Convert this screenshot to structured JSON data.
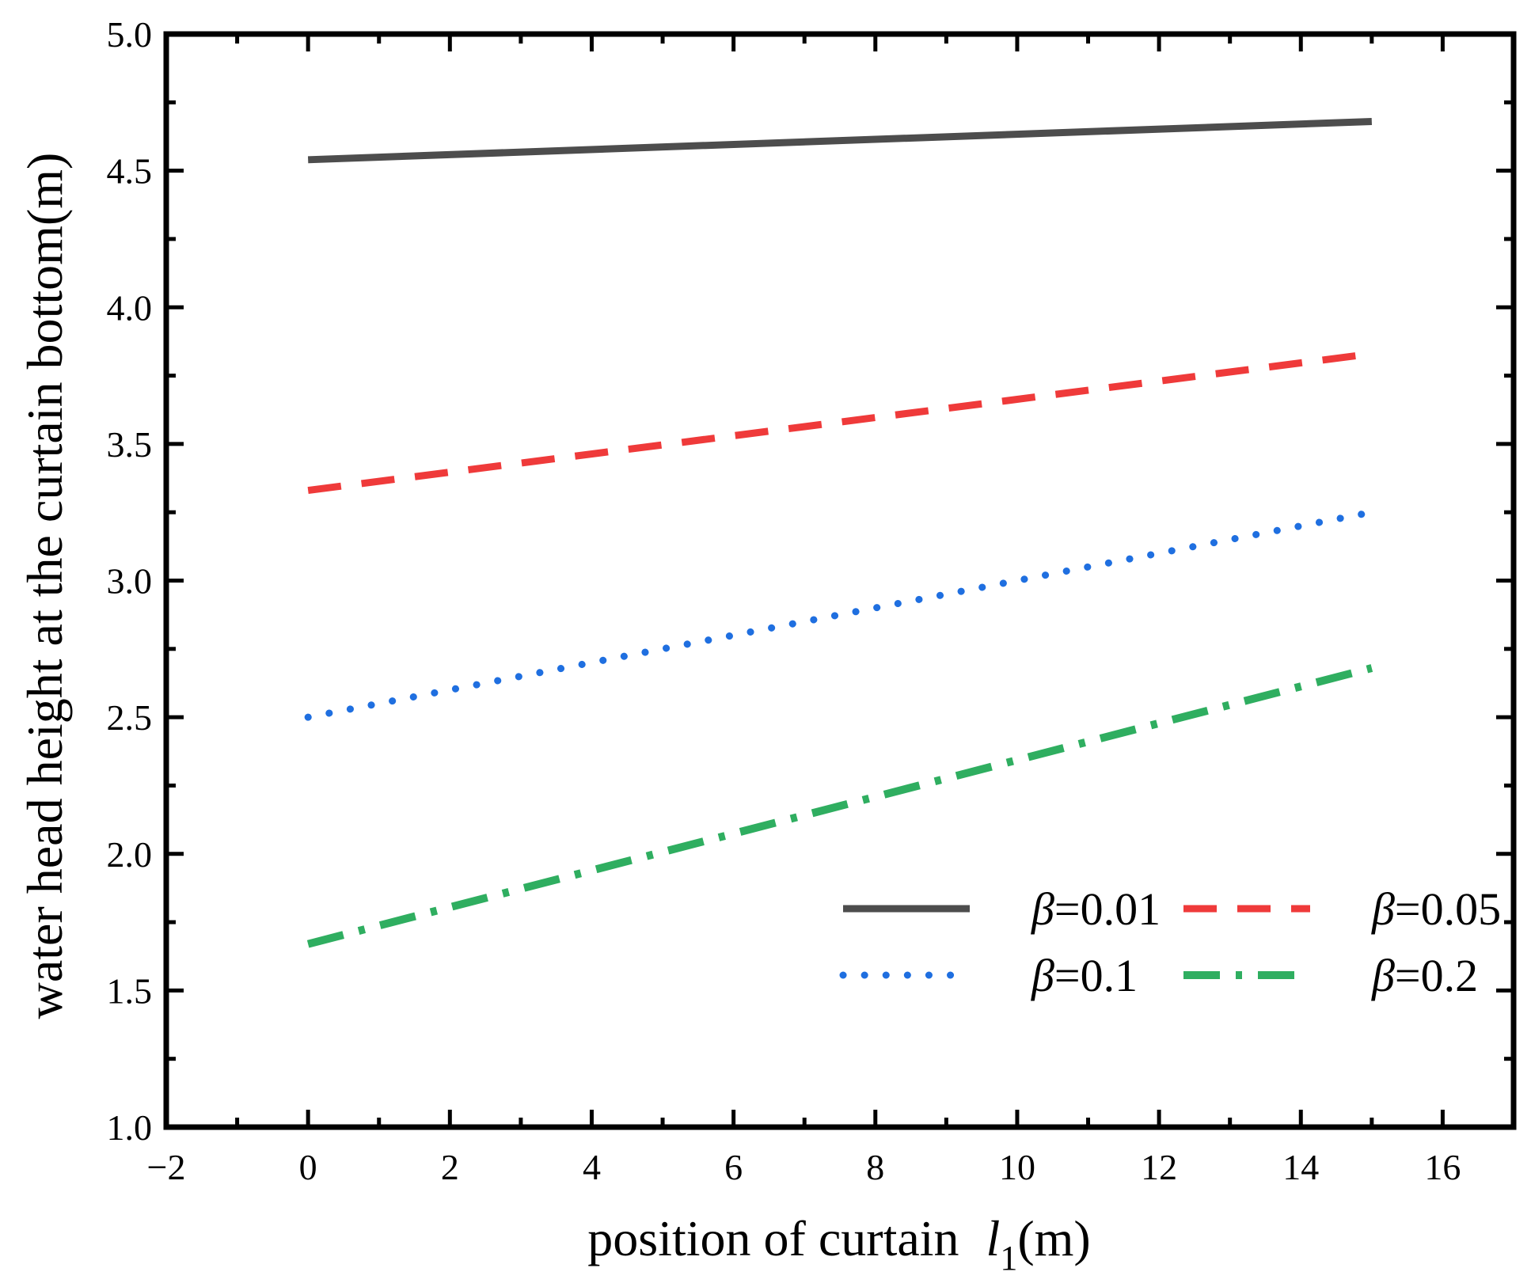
{
  "chart_data": {
    "type": "line",
    "title": "",
    "xlabel": "position of curtain",
    "xlabel_symbol": "l",
    "xlabel_subscript": "1",
    "xlabel_unit": "(m)",
    "ylabel": "water head height at the curtain bottom(m)",
    "xlim": [
      -2,
      17
    ],
    "ylim": [
      1.0,
      5.0
    ],
    "xticks": [
      -2,
      0,
      2,
      4,
      6,
      8,
      10,
      12,
      14,
      16
    ],
    "xtick_labels": [
      "−2",
      "0",
      "2",
      "4",
      "6",
      "8",
      "10",
      "12",
      "14",
      "16"
    ],
    "yticks": [
      1.0,
      1.5,
      2.0,
      2.5,
      3.0,
      3.5,
      4.0,
      4.5,
      5.0
    ],
    "ytick_labels": [
      "1.0",
      "1.5",
      "2.0",
      "2.5",
      "3.0",
      "3.5",
      "4.0",
      "4.5",
      "5.0"
    ],
    "grid": false,
    "legend_position": "lower-right",
    "series": [
      {
        "name": "β=0.01",
        "symbol": "β",
        "value_label": "=0.01",
        "color": "#4d4d4d",
        "style": "solid",
        "x": [
          0,
          15
        ],
        "y": [
          4.54,
          4.68
        ]
      },
      {
        "name": "β=0.05",
        "symbol": "β",
        "value_label": "=0.05",
        "color": "#ef3a3a",
        "style": "dash",
        "x": [
          0,
          15
        ],
        "y": [
          3.33,
          3.83
        ]
      },
      {
        "name": "β=0.1",
        "symbol": "β",
        "value_label": "=0.1",
        "color": "#1f6fe0",
        "style": "dot",
        "x": [
          0,
          15
        ],
        "y": [
          2.5,
          3.25
        ]
      },
      {
        "name": "β=0.2",
        "symbol": "β",
        "value_label": "=0.2",
        "color": "#2fae60",
        "style": "dash-dot",
        "x": [
          0,
          15
        ],
        "y": [
          1.67,
          2.68
        ]
      }
    ]
  }
}
